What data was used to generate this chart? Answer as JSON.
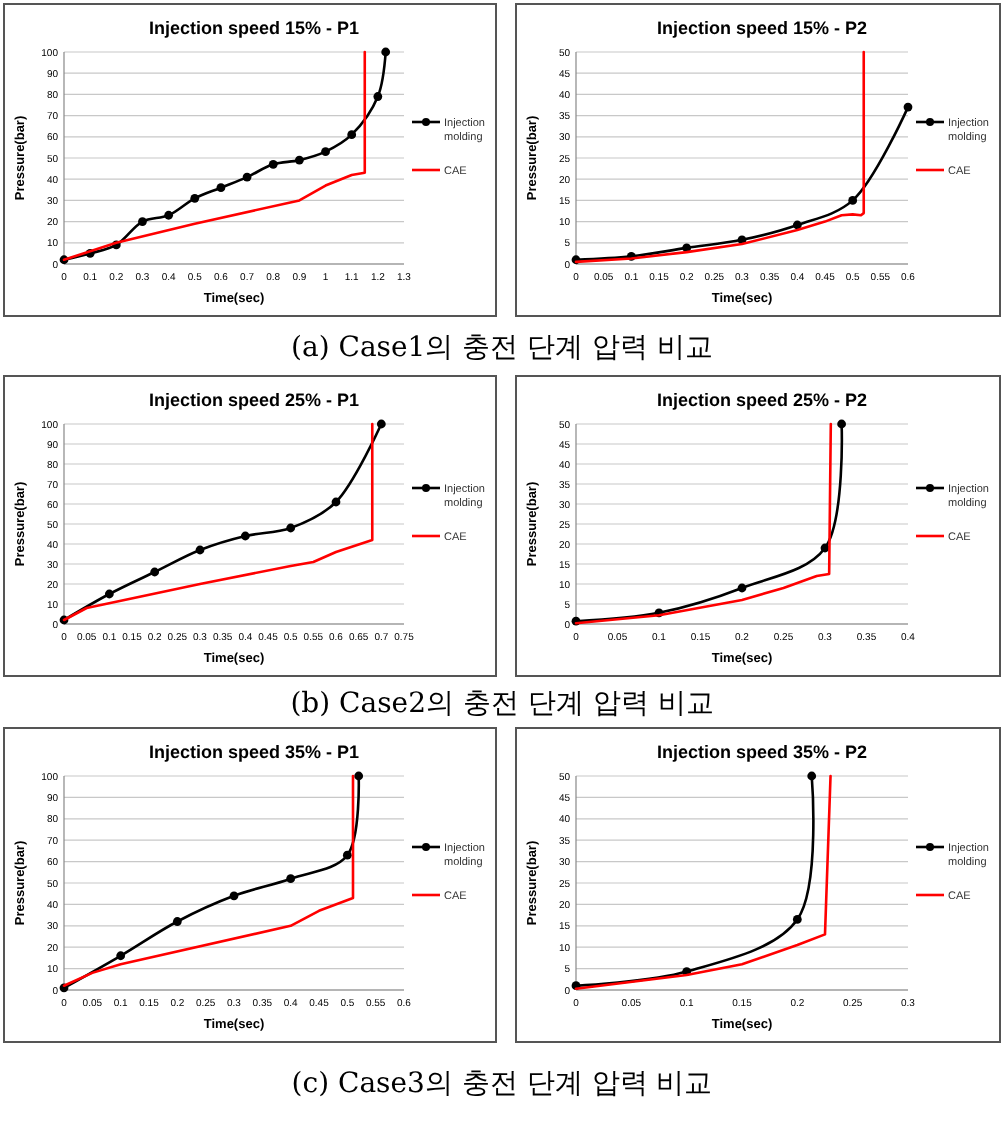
{
  "chart_data": [
    {
      "type": "line",
      "title": "Injection speed 15% - P1",
      "xlabel": "Time(sec)",
      "ylabel": "Pressure(bar)",
      "xlim": [
        0,
        1.3
      ],
      "xticks": [
        0,
        0.1,
        0.2,
        0.3,
        0.4,
        0.5,
        0.6,
        0.7,
        0.8,
        0.9,
        1,
        1.1,
        1.2,
        1.3
      ],
      "ylim": [
        0,
        100
      ],
      "yticks": [
        0,
        10,
        20,
        30,
        40,
        50,
        60,
        70,
        80,
        90,
        100
      ],
      "grid": "y",
      "legend": "right",
      "annotations": [
        "(a) Case1의 충전 단계 압력 비교"
      ],
      "series": [
        {
          "name": "Injection molding",
          "color": "#000000",
          "marker": "circle",
          "x": [
            0,
            0.1,
            0.2,
            0.3,
            0.4,
            0.5,
            0.6,
            0.7,
            0.8,
            0.9,
            1,
            1.1,
            1.2,
            1.23
          ],
          "values": [
            2,
            5,
            9,
            20,
            23,
            31,
            36,
            41,
            47,
            49,
            53,
            61,
            79,
            100
          ]
        },
        {
          "name": "CAE",
          "color": "#ff0000",
          "marker": "none",
          "x": [
            0,
            0.2,
            0.5,
            0.9,
            1,
            1.1,
            1.15,
            1.15
          ],
          "values": [
            2,
            10,
            19,
            30,
            37,
            42,
            43,
            100
          ]
        }
      ]
    },
    {
      "type": "line",
      "title": "Injection speed 15% - P2",
      "xlabel": "Time(sec)",
      "ylabel": "Pressure(bar)",
      "xlim": [
        0,
        0.6
      ],
      "xticks": [
        0,
        0.05,
        0.1,
        0.15,
        0.2,
        0.25,
        0.3,
        0.35,
        0.4,
        0.45,
        0.5,
        0.55,
        0.6
      ],
      "ylim": [
        0,
        50
      ],
      "yticks": [
        0,
        5,
        10,
        15,
        20,
        25,
        30,
        35,
        40,
        45,
        50
      ],
      "grid": "y",
      "legend": "right",
      "series": [
        {
          "name": "Injection molding",
          "color": "#000000",
          "marker": "circle",
          "x": [
            0,
            0.1,
            0.2,
            0.3,
            0.4,
            0.5,
            0.6
          ],
          "values": [
            1,
            1.8,
            3.8,
            5.7,
            9.2,
            15,
            37
          ]
        },
        {
          "name": "CAE",
          "color": "#ff0000",
          "marker": "none",
          "x": [
            0,
            0.1,
            0.2,
            0.3,
            0.4,
            0.45,
            0.48,
            0.5,
            0.515,
            0.52,
            0.52
          ],
          "values": [
            0.5,
            1.3,
            2.8,
            4.7,
            8,
            10,
            11.5,
            11.7,
            11.5,
            12,
            50
          ]
        }
      ]
    },
    {
      "type": "line",
      "title": "Injection speed 25% - P1",
      "xlabel": "Time(sec)",
      "ylabel": "Pressure(bar)",
      "xlim": [
        0,
        0.75
      ],
      "xticks": [
        0,
        0.05,
        0.1,
        0.15,
        0.2,
        0.25,
        0.3,
        0.35,
        0.4,
        0.45,
        0.5,
        0.55,
        0.6,
        0.65,
        0.7,
        0.75
      ],
      "ylim": [
        0,
        100
      ],
      "yticks": [
        0,
        10,
        20,
        30,
        40,
        50,
        60,
        70,
        80,
        90,
        100
      ],
      "grid": "y",
      "legend": "right",
      "annotations": [
        "(b) Case2의 충전 단계 압력 비교"
      ],
      "series": [
        {
          "name": "Injection molding",
          "color": "#000000",
          "marker": "circle",
          "x": [
            0,
            0.1,
            0.2,
            0.3,
            0.4,
            0.5,
            0.6,
            0.7
          ],
          "values": [
            2,
            15,
            26,
            37,
            44,
            48,
            61,
            100
          ]
        },
        {
          "name": "CAE",
          "color": "#ff0000",
          "marker": "none",
          "x": [
            0,
            0.05,
            0.3,
            0.5,
            0.55,
            0.6,
            0.68,
            0.68
          ],
          "values": [
            2,
            8,
            20,
            29,
            31,
            36,
            42,
            100
          ]
        }
      ]
    },
    {
      "type": "line",
      "title": "Injection speed 25% - P2",
      "xlabel": "Time(sec)",
      "ylabel": "Pressure(bar)",
      "xlim": [
        0,
        0.4
      ],
      "xticks": [
        0,
        0.05,
        0.1,
        0.15,
        0.2,
        0.25,
        0.3,
        0.35,
        0.4
      ],
      "ylim": [
        0,
        50
      ],
      "yticks": [
        0,
        5,
        10,
        15,
        20,
        25,
        30,
        35,
        40,
        45,
        50
      ],
      "grid": "y",
      "legend": "right",
      "series": [
        {
          "name": "Injection molding",
          "color": "#000000",
          "marker": "circle",
          "x": [
            0,
            0.1,
            0.2,
            0.3,
            0.32
          ],
          "values": [
            0.7,
            2.8,
            9,
            19,
            50
          ]
        },
        {
          "name": "CAE",
          "color": "#ff0000",
          "marker": "none",
          "x": [
            0,
            0.1,
            0.2,
            0.25,
            0.29,
            0.305,
            0.307
          ],
          "values": [
            0.2,
            2.2,
            6,
            9,
            12,
            12.5,
            50
          ]
        }
      ]
    },
    {
      "type": "line",
      "title": "Injection speed 35% - P1",
      "xlabel": "Time(sec)",
      "ylabel": "Pressure(bar)",
      "xlim": [
        0,
        0.6
      ],
      "xticks": [
        0,
        0.05,
        0.1,
        0.15,
        0.2,
        0.25,
        0.3,
        0.35,
        0.4,
        0.45,
        0.5,
        0.55,
        0.6
      ],
      "ylim": [
        0,
        100
      ],
      "yticks": [
        0,
        10,
        20,
        30,
        40,
        50,
        60,
        70,
        80,
        90,
        100
      ],
      "grid": "y",
      "legend": "right",
      "annotations": [
        "(c) Case3의 충전 단계 압력 비교"
      ],
      "series": [
        {
          "name": "Injection molding",
          "color": "#000000",
          "marker": "circle",
          "x": [
            0,
            0.1,
            0.2,
            0.3,
            0.4,
            0.5,
            0.52
          ],
          "values": [
            1,
            16,
            32,
            44,
            52,
            63,
            100
          ]
        },
        {
          "name": "CAE",
          "color": "#ff0000",
          "marker": "none",
          "x": [
            0,
            0.05,
            0.1,
            0.4,
            0.45,
            0.51,
            0.51
          ],
          "values": [
            2,
            8,
            12,
            30,
            37,
            43,
            100
          ]
        }
      ]
    },
    {
      "type": "line",
      "title": "Injection speed 35% - P2",
      "xlabel": "Time(sec)",
      "ylabel": "Pressure(bar)",
      "xlim": [
        0,
        0.3
      ],
      "xticks": [
        0,
        0.05,
        0.1,
        0.15,
        0.2,
        0.25,
        0.3
      ],
      "ylim": [
        0,
        50
      ],
      "yticks": [
        0,
        5,
        10,
        15,
        20,
        25,
        30,
        35,
        40,
        45,
        50
      ],
      "grid": "y",
      "legend": "right",
      "series": [
        {
          "name": "Injection molding",
          "color": "#000000",
          "marker": "circle",
          "x": [
            0,
            0.1,
            0.2,
            0.213
          ],
          "values": [
            1,
            4.3,
            16.5,
            50
          ]
        },
        {
          "name": "CAE",
          "color": "#ff0000",
          "marker": "none",
          "x": [
            0,
            0.1,
            0.15,
            0.2,
            0.225,
            0.23
          ],
          "values": [
            0.3,
            3.5,
            6,
            10.5,
            13,
            50
          ]
        }
      ]
    }
  ]
}
